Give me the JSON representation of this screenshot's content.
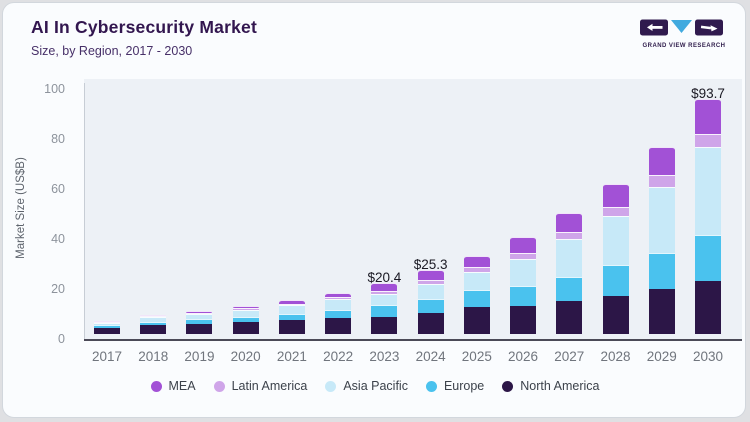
{
  "header": {
    "title": "AI In Cybersecurity Market",
    "subtitle": "Size, by Region, 2017 - 2030"
  },
  "logo": {
    "text": "GRAND VIEW RESEARCH",
    "square_color": "#301a4e",
    "triangle_color": "#41aadf"
  },
  "chart_data": {
    "type": "bar",
    "stacked": true,
    "title": "AI In Cybersecurity Market",
    "ylabel": "Market Size (US$B)",
    "ylim": [
      0,
      100
    ],
    "yticks": [
      0,
      20,
      40,
      60,
      80,
      100
    ],
    "grid": false,
    "legend_position": "bottom",
    "categories": [
      "2017",
      "2018",
      "2019",
      "2020",
      "2021",
      "2022",
      "2023",
      "2024",
      "2025",
      "2026",
      "2027",
      "2028",
      "2029",
      "2030"
    ],
    "series": [
      {
        "name": "North America",
        "color": "#2c1647",
        "values": [
          2.4,
          3.3,
          3.9,
          4.6,
          5.3,
          6.2,
          6.8,
          8.2,
          10.5,
          10.9,
          13.0,
          15.0,
          17.8,
          21.0
        ]
      },
      {
        "name": "Europe",
        "color": "#4ac2ee",
        "values": [
          1.2,
          1.5,
          1.8,
          2.2,
          2.7,
          3.3,
          4.5,
          5.8,
          7.0,
          8.0,
          9.8,
          12.5,
          14.6,
          18.5
        ]
      },
      {
        "name": "Asia Pacific",
        "color": "#c7e9f8",
        "values": [
          0.8,
          1.9,
          2.2,
          2.8,
          3.3,
          4.2,
          4.6,
          5.7,
          7.3,
          10.9,
          14.9,
          19.6,
          26.3,
          35.0
        ]
      },
      {
        "name": "Latin America",
        "color": "#cfa5e9",
        "values": [
          0.1,
          0.3,
          0.4,
          0.5,
          0.7,
          0.9,
          1.2,
          1.6,
          1.8,
          2.3,
          2.9,
          3.6,
          4.6,
          5.3
        ]
      },
      {
        "name": "MEA",
        "color": "#a251d6",
        "values": [
          0.1,
          0.4,
          0.6,
          0.9,
          1.4,
          1.8,
          3.3,
          4.0,
          4.4,
          6.5,
          7.8,
          9.1,
          11.2,
          13.9
        ]
      }
    ],
    "totals": [
      4.6,
      7.4,
      8.9,
      11.0,
      13.4,
      16.4,
      20.4,
      25.3,
      31.0,
      38.6,
      48.4,
      59.8,
      74.5,
      93.7
    ],
    "bar_labels": {
      "2023": "$20.4",
      "2024": "$25.3",
      "2030": "$93.7"
    },
    "legend": [
      {
        "label": "MEA",
        "color": "#a251d6"
      },
      {
        "label": "Latin America",
        "color": "#cfa5e9"
      },
      {
        "label": "Asia Pacific",
        "color": "#c7e9f8"
      },
      {
        "label": "Europe",
        "color": "#4ac2ee"
      },
      {
        "label": "North America",
        "color": "#2c1647"
      }
    ]
  }
}
